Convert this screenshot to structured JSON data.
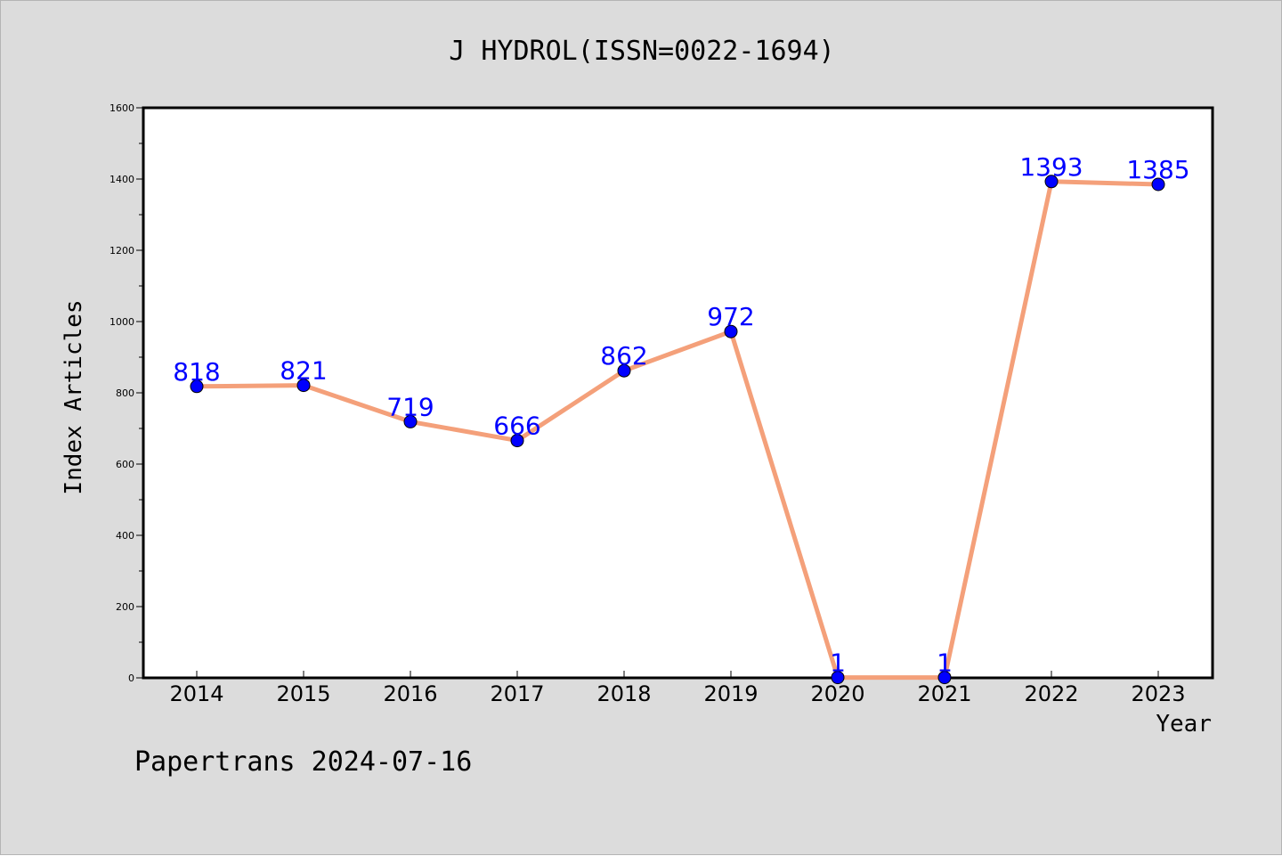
{
  "chart_data": {
    "type": "line",
    "title": "J HYDROL(ISSN=0022-1694)",
    "xlabel": "Year",
    "ylabel": "Index Articles",
    "categories": [
      "2014",
      "2015",
      "2016",
      "2017",
      "2018",
      "2019",
      "2020",
      "2021",
      "2022",
      "2023"
    ],
    "series": [
      {
        "values": [
          818,
          821,
          719,
          666,
          862,
          972,
          1,
          1,
          1393,
          1385
        ]
      }
    ],
    "data_labels": [
      "818",
      "821",
      "719",
      "666",
      "862",
      "972",
      "1",
      "1",
      "1393",
      "1385"
    ],
    "ylim": [
      0,
      1600
    ],
    "yticks": [
      0,
      200,
      400,
      600,
      800,
      1000,
      1200,
      1400,
      1600
    ],
    "ytick_labels": [
      "0",
      "200",
      "400",
      "600",
      "800",
      "1000",
      "1200",
      "1400",
      "1600"
    ],
    "grid": false,
    "line_color": "#f4a07a",
    "marker_color": "#0000ff",
    "label_color": "#0000ff",
    "background_color": "#dcdcdc",
    "plot_background": "#ffffff"
  },
  "footer": {
    "text": "Papertrans 2024-07-16"
  }
}
